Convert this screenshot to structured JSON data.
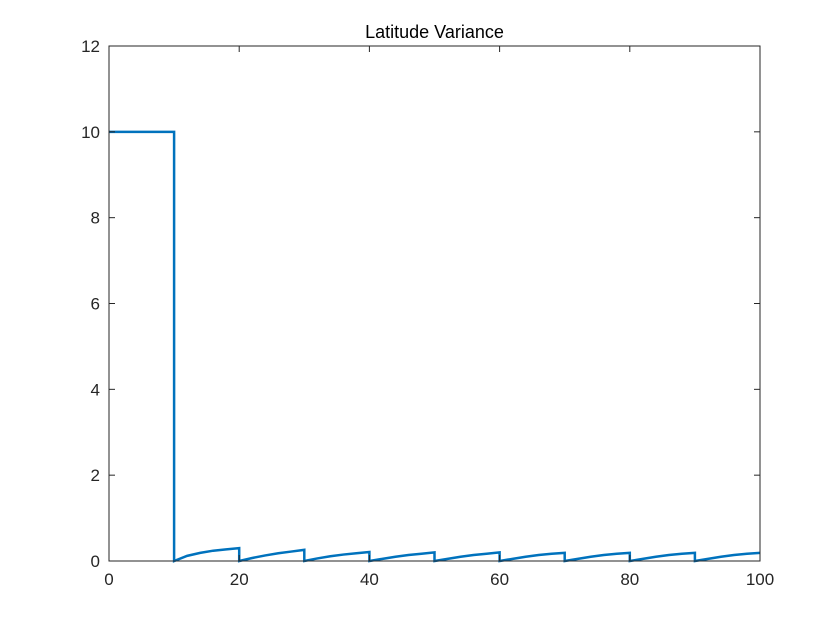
{
  "chart_data": {
    "type": "line",
    "title": "Latitude Variance",
    "xlabel": "",
    "ylabel": "",
    "xlim": [
      0,
      100
    ],
    "ylim": [
      0,
      12
    ],
    "xticks": [
      0,
      20,
      40,
      60,
      80,
      100
    ],
    "yticks": [
      0,
      2,
      4,
      6,
      8,
      10,
      12
    ],
    "grid": false,
    "colors": {
      "series": "#0072BD",
      "axes": "#262626"
    },
    "series": [
      {
        "x": [
          0,
          10,
          10,
          12,
          14,
          16,
          18,
          20,
          20,
          22,
          24,
          26,
          28,
          30,
          30,
          32,
          34,
          36,
          38,
          40,
          40,
          42,
          44,
          46,
          48,
          50,
          50,
          52,
          54,
          56,
          58,
          60,
          60,
          62,
          64,
          66,
          68,
          70,
          70,
          72,
          74,
          76,
          78,
          80,
          80,
          82,
          84,
          86,
          88,
          90,
          90,
          92,
          94,
          96,
          98,
          100
        ],
        "y": [
          10,
          10,
          0,
          0.12,
          0.19,
          0.24,
          0.27,
          0.3,
          0,
          0.07,
          0.13,
          0.18,
          0.22,
          0.26,
          0,
          0.06,
          0.11,
          0.15,
          0.18,
          0.21,
          0,
          0.05,
          0.1,
          0.14,
          0.17,
          0.2,
          0,
          0.05,
          0.1,
          0.14,
          0.17,
          0.2,
          0,
          0.05,
          0.1,
          0.14,
          0.17,
          0.19,
          0,
          0.05,
          0.1,
          0.14,
          0.17,
          0.19,
          0,
          0.05,
          0.1,
          0.14,
          0.17,
          0.19,
          0,
          0.05,
          0.1,
          0.14,
          0.17,
          0.19
        ]
      }
    ]
  }
}
